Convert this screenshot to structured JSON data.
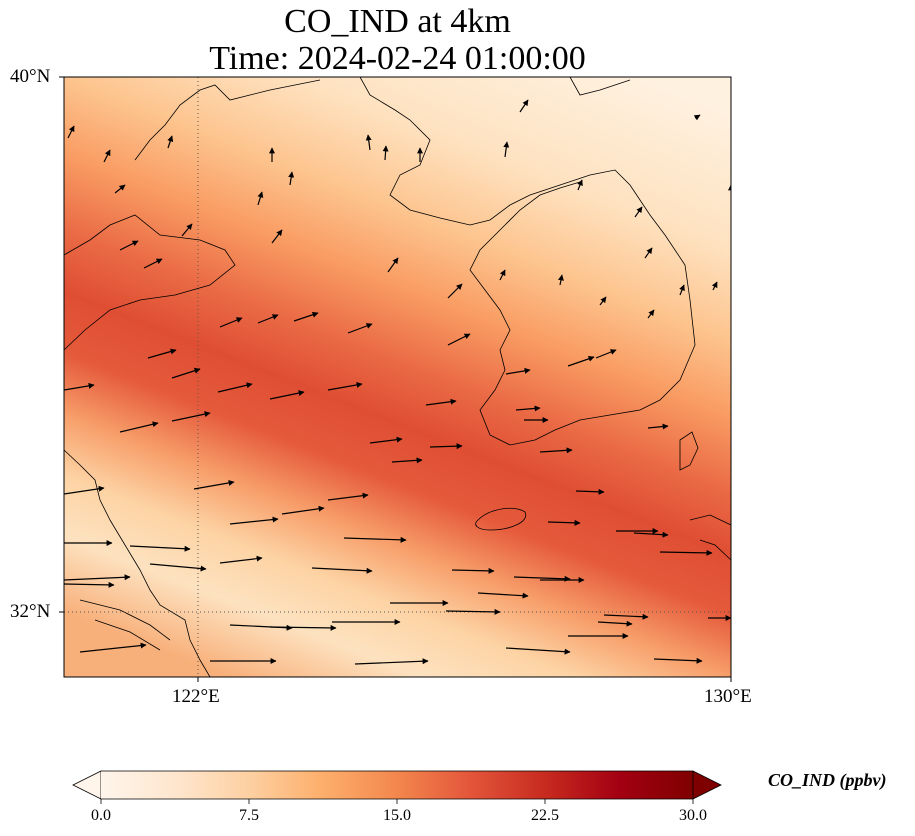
{
  "title_line1": "CO_IND at 4km",
  "title_line2": "Time: 2024-02-24 01:00:00",
  "lat_ticks": [
    {
      "label": "40°N",
      "lat": 40
    },
    {
      "label": "32°N",
      "lat": 32
    }
  ],
  "lon_ticks": [
    {
      "label": "122°E",
      "lon": 122
    },
    {
      "label": "130°E",
      "lon": 130
    }
  ],
  "extent": {
    "lon_min": 120.4,
    "lon_max": 130,
    "lat_min": 31,
    "lat_max": 40
  },
  "colorbar": {
    "label": "CO_IND (ppbv)",
    "ticks": [
      "0.0",
      "7.5",
      "15.0",
      "22.5",
      "30.0"
    ],
    "min": 0,
    "max": 30,
    "extend": "both",
    "colormap": [
      "#fff5eb",
      "#fee6ce",
      "#fdd0a2",
      "#fdae6b",
      "#f3874d",
      "#e3553a",
      "#c72b1f",
      "#a30012",
      "#7f0000"
    ]
  },
  "field_description": "Diagonal band of high CO concentration (~18-22 ppbv) running from southwest to east-southeast; low values (~2-5 ppbv) in the northeast and a lighter band in the south",
  "wind": "Vectors mostly westerly in south, southwesterly to southerly in north"
}
